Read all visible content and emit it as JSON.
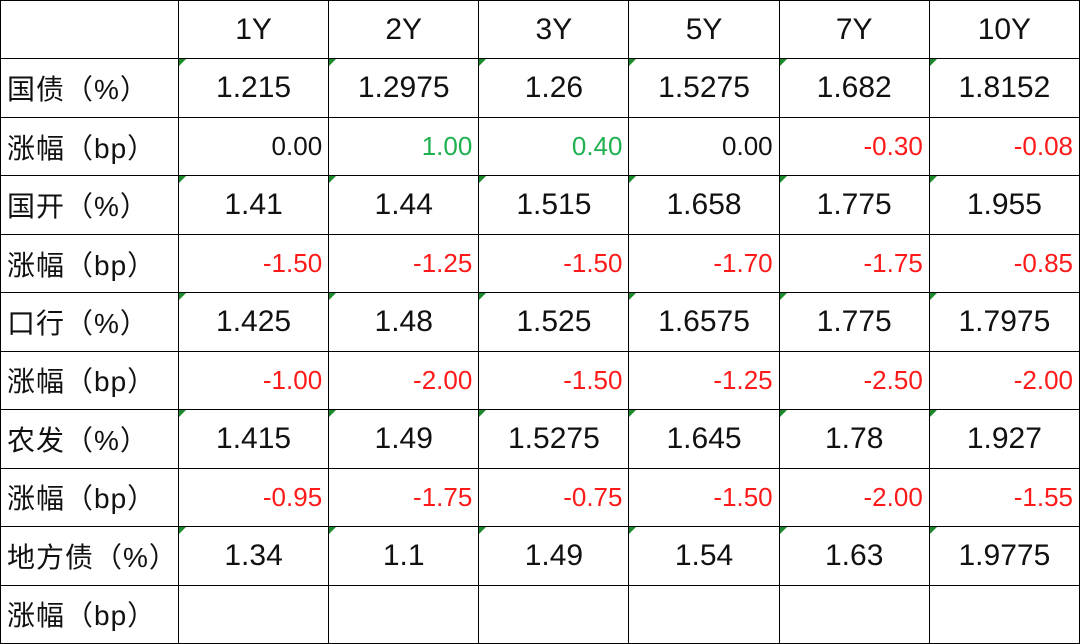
{
  "table": {
    "columns": [
      "1Y",
      "2Y",
      "3Y",
      "5Y",
      "7Y",
      "10Y"
    ],
    "rows": [
      {
        "label": "国债（%）",
        "values": [
          "1.215",
          "1.2975",
          "1.26",
          "1.5275",
          "1.682",
          "1.8152"
        ]
      },
      {
        "label": "涨幅（bp）",
        "values": [
          "0.00",
          "1.00",
          "0.40",
          "0.00",
          "-0.30",
          "-0.08"
        ]
      },
      {
        "label": "国开（%）",
        "values": [
          "1.41",
          "1.44",
          "1.515",
          "1.658",
          "1.775",
          "1.955"
        ]
      },
      {
        "label": "涨幅（bp）",
        "values": [
          "-1.50",
          "-1.25",
          "-1.50",
          "-1.70",
          "-1.75",
          "-0.85"
        ]
      },
      {
        "label": "口行（%）",
        "values": [
          "1.425",
          "1.48",
          "1.525",
          "1.6575",
          "1.775",
          "1.7975"
        ]
      },
      {
        "label": "涨幅（bp）",
        "values": [
          "-1.00",
          "-2.00",
          "-1.50",
          "-1.25",
          "-2.50",
          "-2.00"
        ]
      },
      {
        "label": "农发（%）",
        "values": [
          "1.415",
          "1.49",
          "1.5275",
          "1.645",
          "1.78",
          "1.927"
        ]
      },
      {
        "label": "涨幅（bp）",
        "values": [
          "-0.95",
          "-1.75",
          "-0.75",
          "-1.50",
          "-2.00",
          "-1.55"
        ]
      },
      {
        "label": "地方债（%）",
        "values": [
          "1.34",
          "1.1",
          "1.49",
          "1.54",
          "1.63",
          "1.9775"
        ]
      },
      {
        "label": "涨幅（bp）"
      }
    ]
  }
}
